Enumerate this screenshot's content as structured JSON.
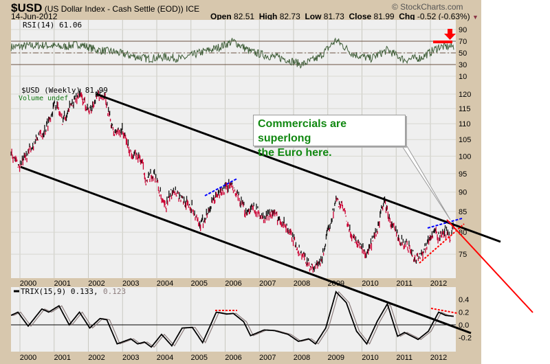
{
  "header": {
    "symbol": "$USD",
    "name": "(US Dollar Index - Cash Settle (EOD))",
    "exchange": "ICE",
    "date": "14-Jun-2012",
    "copyright": "© StockCharts.com",
    "open_label": "Open",
    "open": "82.51",
    "high_label": "High",
    "high": "82.73",
    "low_label": "Low",
    "low": "81.73",
    "close_label": "Close",
    "close": "81.99",
    "chg_label": "Chg",
    "chg": "-0.52 (-0.63%)"
  },
  "annotation": {
    "line1": "Commercials are superlong",
    "line2": "the Euro here."
  },
  "colors": {
    "up": "#111111",
    "down": "#cc0033",
    "rsi": "#3d5c36",
    "trix": "#000000",
    "signal": "#8a7a7a",
    "accent_red": "#ff0000",
    "accent_blue": "#0000ff"
  },
  "chart_data": [
    {
      "type": "line",
      "title": "RSI(14) 61.06",
      "ylim": [
        0,
        100
      ],
      "yticks": [
        "90",
        "70",
        "50",
        "30",
        "10"
      ],
      "ytick_values": [
        90,
        70,
        50,
        30,
        10
      ],
      "levels": [
        70,
        50,
        30
      ],
      "series": [
        {
          "name": "RSI(14)",
          "points": [
            [
              1999.5,
              60
            ],
            [
              2000,
              62
            ],
            [
              2000.5,
              63
            ],
            [
              2001,
              60
            ],
            [
              2001.5,
              65
            ],
            [
              2002,
              55
            ],
            [
              2002.5,
              52
            ],
            [
              2003,
              45
            ],
            [
              2003.5,
              40
            ],
            [
              2004,
              43
            ],
            [
              2004.5,
              40
            ],
            [
              2005,
              50
            ],
            [
              2005.5,
              58
            ],
            [
              2006,
              70
            ],
            [
              2006.5,
              52
            ],
            [
              2007,
              45
            ],
            [
              2007.5,
              40
            ],
            [
              2008,
              30
            ],
            [
              2008.5,
              42
            ],
            [
              2009,
              72
            ],
            [
              2009.5,
              48
            ],
            [
              2010,
              40
            ],
            [
              2010.5,
              55
            ],
            [
              2011,
              38
            ],
            [
              2011.5,
              42
            ],
            [
              2012,
              60
            ],
            [
              2012.45,
              61
            ]
          ]
        }
      ]
    },
    {
      "type": "bar",
      "title": "$USD (Weekly) 81.99",
      "legend2": "Volume undef",
      "ylim": [
        70,
        122
      ],
      "scale": "log",
      "yticks": [
        "120",
        "115",
        "110",
        "105",
        "100",
        "95",
        "90",
        "85",
        "80",
        "75"
      ],
      "ytick_values": [
        120,
        115,
        110,
        105,
        100,
        95,
        90,
        85,
        80,
        75
      ],
      "xticks": [
        "2000",
        "2001",
        "2002",
        "2003",
        "2004",
        "2005",
        "2006",
        "2007",
        "2008",
        "2009",
        "2010",
        "2011",
        "2012"
      ],
      "series": [
        {
          "name": "$USD",
          "points": [
            [
              1999.5,
              102
            ],
            [
              1999.6,
              99
            ],
            [
              1999.75,
              97
            ],
            [
              2000,
              101
            ],
            [
              2000.3,
              106
            ],
            [
              2000.5,
              108
            ],
            [
              2000.8,
              117
            ],
            [
              2001,
              111
            ],
            [
              2001.3,
              117
            ],
            [
              2001.5,
              120
            ],
            [
              2001.8,
              114
            ],
            [
              2002,
              119
            ],
            [
              2002.2,
              120
            ],
            [
              2002.5,
              107
            ],
            [
              2002.75,
              108
            ],
            [
              2003,
              101
            ],
            [
              2003.3,
              99
            ],
            [
              2003.45,
              93
            ],
            [
              2003.7,
              95
            ],
            [
              2003.9,
              88
            ],
            [
              2004,
              86
            ],
            [
              2004.25,
              91
            ],
            [
              2004.5,
              88
            ],
            [
              2004.8,
              86
            ],
            [
              2005,
              81
            ],
            [
              2005.2,
              84
            ],
            [
              2005.5,
              89
            ],
            [
              2005.9,
              92
            ],
            [
              2006.1,
              89
            ],
            [
              2006.35,
              85
            ],
            [
              2006.6,
              86
            ],
            [
              2006.9,
              83
            ],
            [
              2007.1,
              85
            ],
            [
              2007.5,
              82
            ],
            [
              2007.9,
              76
            ],
            [
              2008.2,
              73
            ],
            [
              2008.3,
              72
            ],
            [
              2008.55,
              73
            ],
            [
              2008.8,
              81
            ],
            [
              2009,
              88
            ],
            [
              2009.2,
              86
            ],
            [
              2009.4,
              80
            ],
            [
              2009.7,
              77
            ],
            [
              2009.9,
              75
            ],
            [
              2010.2,
              80
            ],
            [
              2010.4,
              88
            ],
            [
              2010.6,
              82
            ],
            [
              2010.9,
              78
            ],
            [
              2011.1,
              77
            ],
            [
              2011.3,
              74
            ],
            [
              2011.5,
              75
            ],
            [
              2011.7,
              78
            ],
            [
              2011.85,
              80
            ],
            [
              2012,
              79
            ],
            [
              2012.2,
              80
            ],
            [
              2012.35,
              79
            ],
            [
              2012.45,
              82
            ]
          ]
        }
      ]
    },
    {
      "type": "line",
      "title": "TRIX(15,9) 0.133,",
      "signal_value": "0.123",
      "ylim": [
        -0.4,
        0.6
      ],
      "yticks": [
        "0.4",
        "0.2",
        "0.0",
        "-0.2"
      ],
      "ytick_values": [
        0.4,
        0.2,
        0,
        -0.2
      ],
      "xticks": [
        "2000",
        "2001",
        "2002",
        "2003",
        "2004",
        "2005",
        "2006",
        "2007",
        "2008",
        "2009",
        "2010",
        "2011",
        "2012"
      ],
      "series": [
        {
          "name": "TRIX",
          "points": [
            [
              1999.5,
              0.15
            ],
            [
              1999.7,
              0.2
            ],
            [
              2000,
              -0.02
            ],
            [
              2000.4,
              0.25
            ],
            [
              2000.6,
              0.2
            ],
            [
              2000.9,
              0.3
            ],
            [
              2001.2,
              0
            ],
            [
              2001.5,
              0.2
            ],
            [
              2001.8,
              -0.05
            ],
            [
              2002.1,
              0.1
            ],
            [
              2002.3,
              0.08
            ],
            [
              2002.6,
              -0.3
            ],
            [
              2003,
              -0.22
            ],
            [
              2003.2,
              -0.3
            ],
            [
              2003.4,
              -0.27
            ],
            [
              2003.6,
              -0.35
            ],
            [
              2003.9,
              -0.15
            ],
            [
              2004.2,
              -0.33
            ],
            [
              2004.5,
              -0.05
            ],
            [
              2004.8,
              -0.04
            ],
            [
              2005.1,
              -0.28
            ],
            [
              2005.5,
              0.2
            ],
            [
              2005.8,
              0.17
            ],
            [
              2006,
              0.18
            ],
            [
              2006.3,
              0.05
            ],
            [
              2006.5,
              -0.17
            ],
            [
              2006.9,
              -0.08
            ],
            [
              2007.2,
              -0.09
            ],
            [
              2007.6,
              -0.15
            ],
            [
              2007.9,
              -0.26
            ],
            [
              2008.2,
              -0.22
            ],
            [
              2008.4,
              -0.3
            ],
            [
              2008.7,
              -0.05
            ],
            [
              2009,
              0.52
            ],
            [
              2009.3,
              0.35
            ],
            [
              2009.6,
              -0.1
            ],
            [
              2009.9,
              -0.3
            ],
            [
              2010.2,
              0.05
            ],
            [
              2010.5,
              0.33
            ],
            [
              2010.8,
              -0.18
            ],
            [
              2011,
              -0.12
            ],
            [
              2011.4,
              -0.23
            ],
            [
              2011.7,
              -0.1
            ],
            [
              2012,
              0.2
            ],
            [
              2012.2,
              0.15
            ],
            [
              2012.45,
              0.133
            ]
          ]
        },
        {
          "name": "Signal",
          "lag": 0.08
        }
      ]
    }
  ]
}
